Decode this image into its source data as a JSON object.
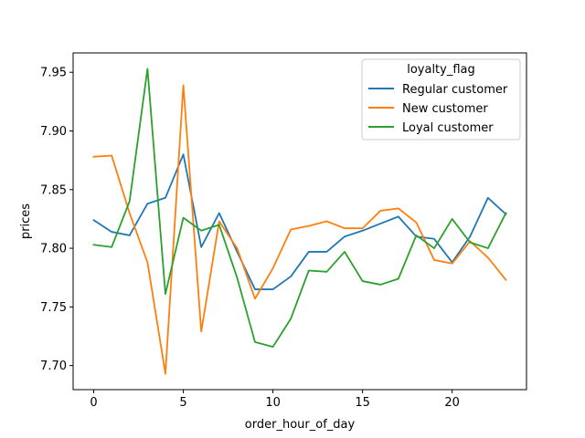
{
  "chart_data": {
    "type": "line",
    "xlabel": "order_hour_of_day",
    "ylabel": "prices",
    "xlim": [
      -1.15,
      24.15
    ],
    "ylim": [
      7.6795,
      7.9665
    ],
    "x_ticks": [
      0,
      5,
      10,
      15,
      20
    ],
    "y_ticks": [
      7.7,
      7.75,
      7.8,
      7.85,
      7.9,
      7.95
    ],
    "grid": false,
    "legend": {
      "title": "loyalty_flag",
      "placement": "upper right"
    },
    "x": [
      0,
      1,
      2,
      3,
      4,
      5,
      6,
      7,
      8,
      9,
      10,
      11,
      12,
      13,
      14,
      15,
      16,
      17,
      18,
      19,
      20,
      21,
      22,
      23
    ],
    "series": [
      {
        "name": "Regular customer",
        "color": "#1f77b4",
        "values": [
          7.824,
          7.814,
          7.811,
          7.838,
          7.843,
          7.88,
          7.801,
          7.83,
          7.797,
          7.765,
          7.765,
          7.776,
          7.797,
          7.797,
          7.81,
          7.815,
          7.821,
          7.827,
          7.81,
          7.808,
          7.788,
          7.81,
          7.843,
          7.829
        ]
      },
      {
        "name": "New customer",
        "color": "#ff7f0e",
        "values": [
          7.878,
          7.879,
          7.83,
          7.788,
          7.693,
          7.939,
          7.729,
          7.823,
          7.8,
          7.757,
          7.783,
          7.816,
          7.819,
          7.823,
          7.817,
          7.817,
          7.832,
          7.834,
          7.822,
          7.79,
          7.787,
          7.806,
          7.792,
          7.773
        ]
      },
      {
        "name": "Loyal customer",
        "color": "#2ca02c",
        "values": [
          7.803,
          7.801,
          7.84,
          7.953,
          7.761,
          7.826,
          7.815,
          7.82,
          7.775,
          7.72,
          7.716,
          7.74,
          7.781,
          7.78,
          7.797,
          7.772,
          7.769,
          7.774,
          7.811,
          7.8,
          7.825,
          7.805,
          7.8,
          7.83
        ]
      }
    ]
  }
}
